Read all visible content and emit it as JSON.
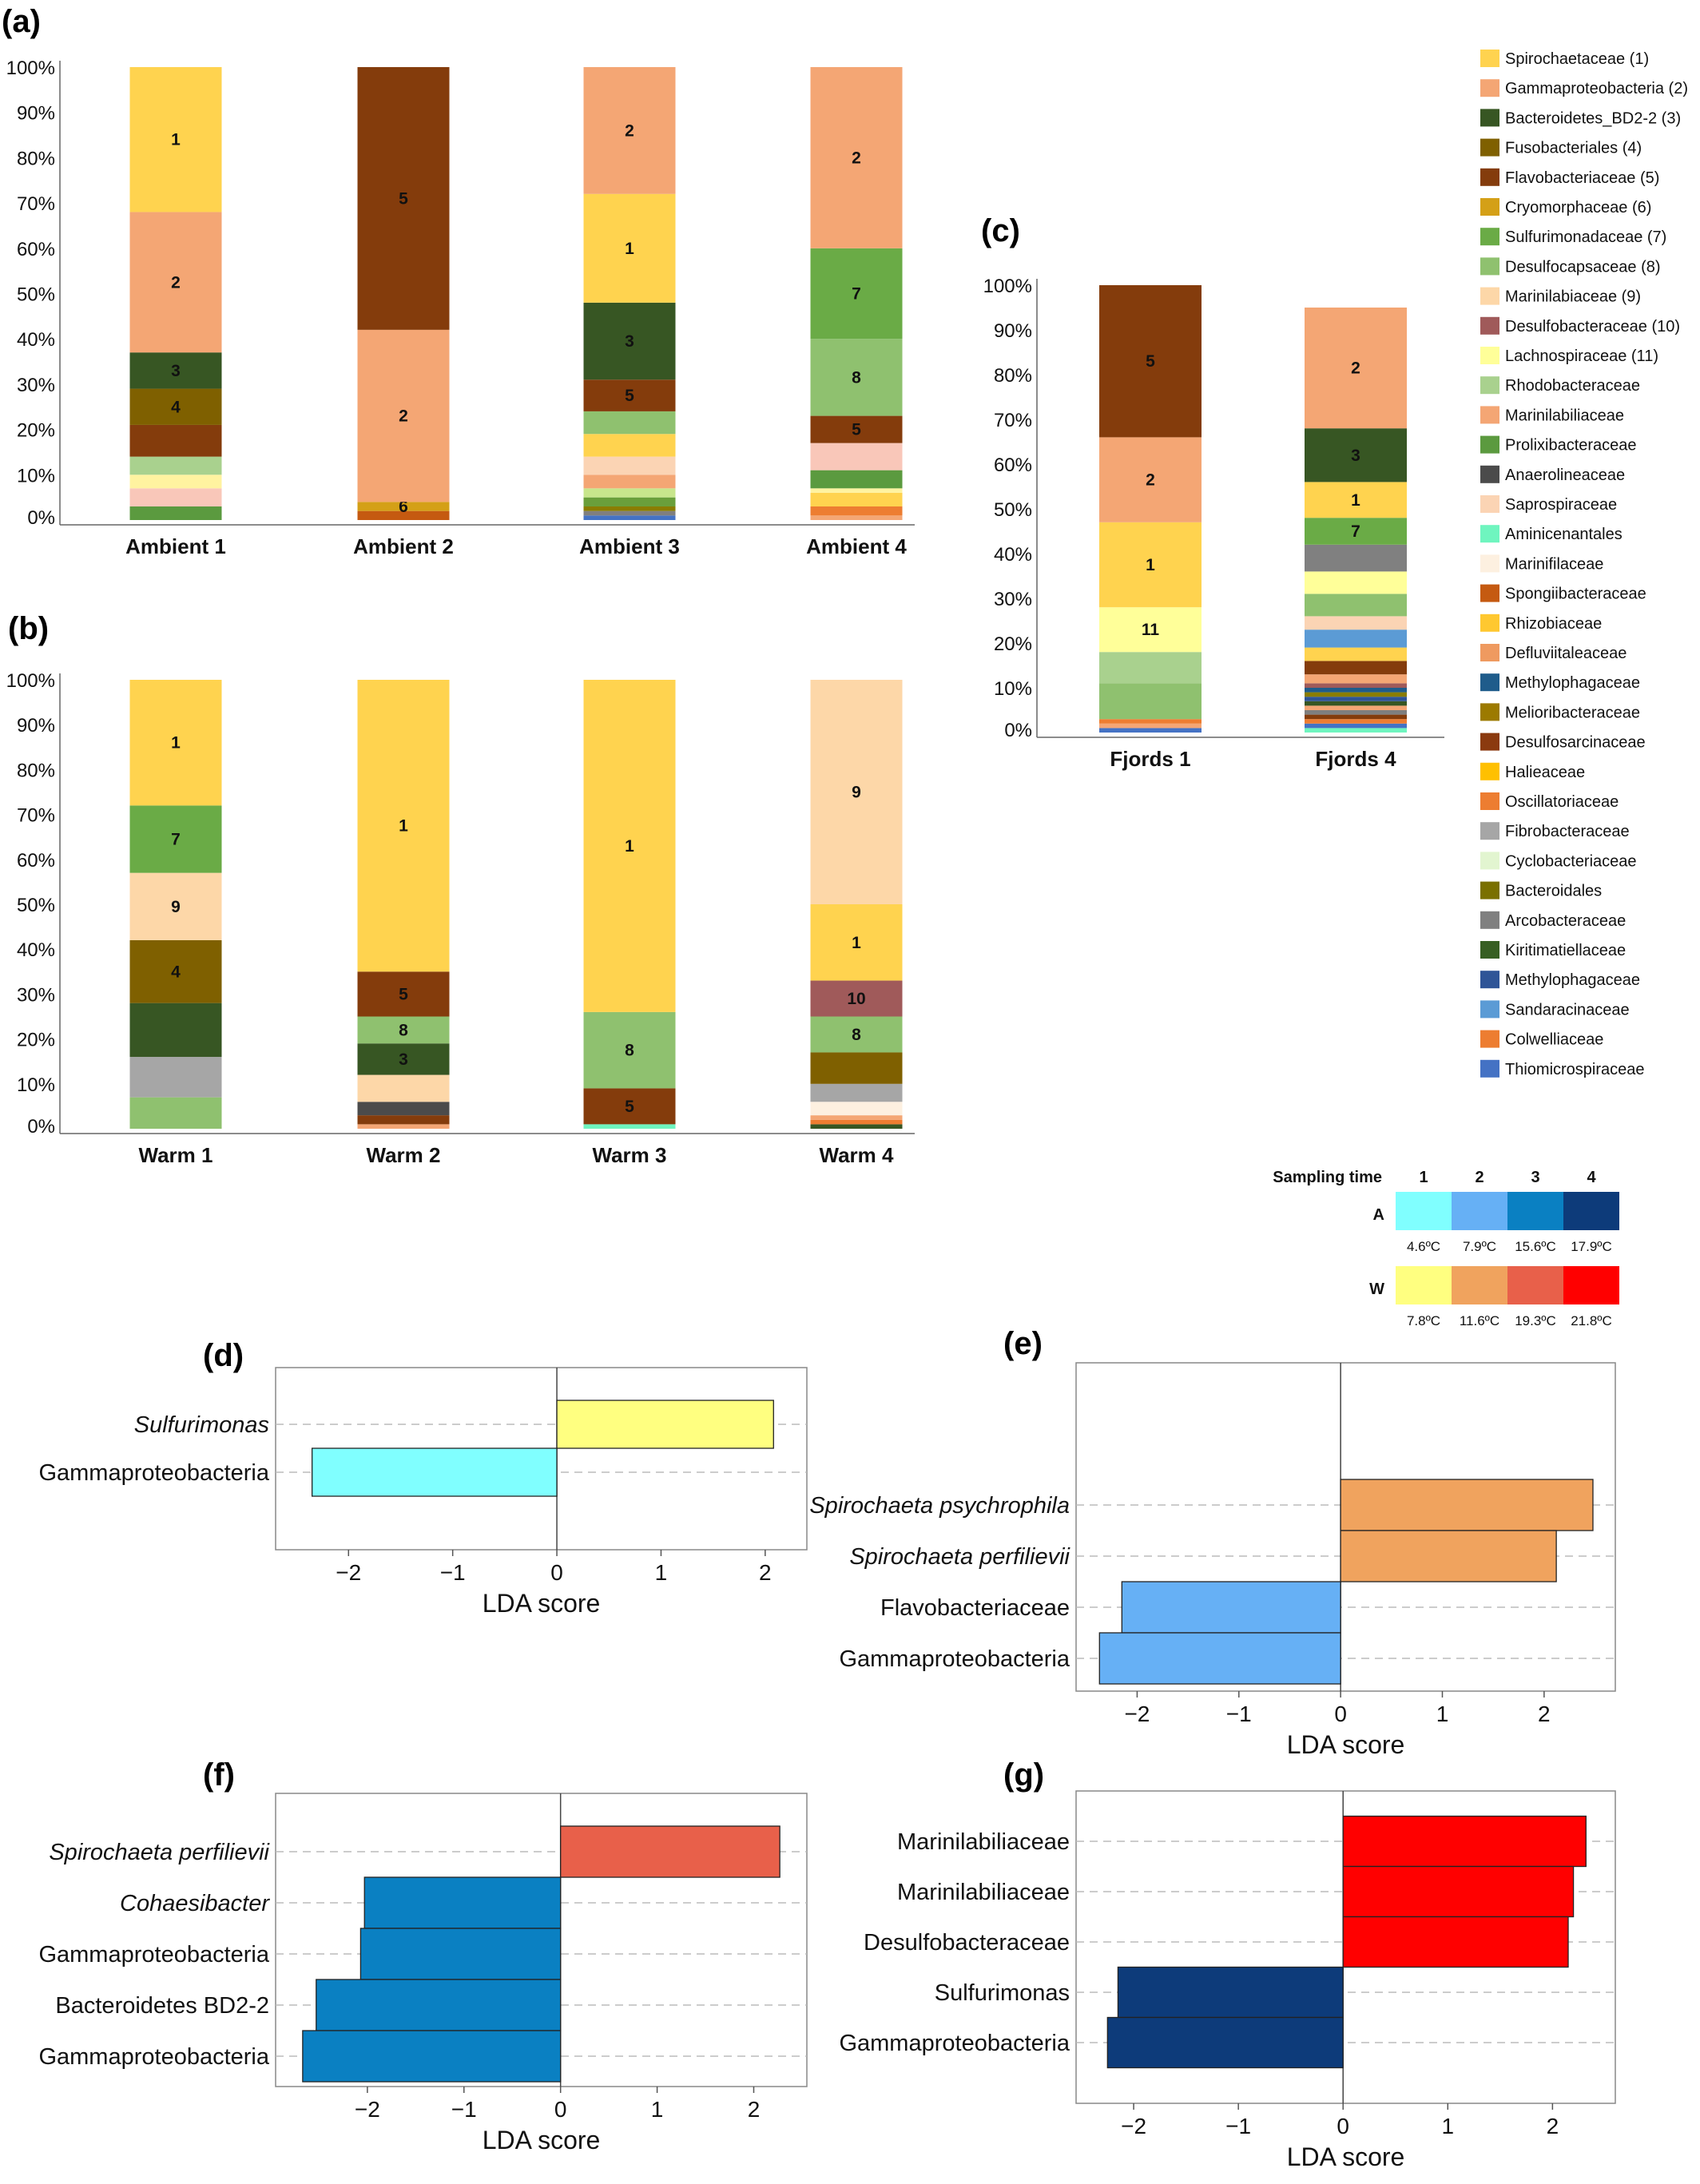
{
  "panel_labels": [
    "(a)",
    "(b)",
    "(c)",
    "(d)",
    "(e)",
    "(f)",
    "(g)"
  ],
  "y_ticks": [
    "0%",
    "10%",
    "20%",
    "30%",
    "40%",
    "50%",
    "60%",
    "70%",
    "80%",
    "90%",
    "100%"
  ],
  "chart_data": [
    {
      "panel": "(a)",
      "type": "bar",
      "stacked": true,
      "ylim": [
        0,
        100
      ],
      "categories": [
        "Ambient 1",
        "Ambient 2",
        "Ambient 3",
        "Ambient 4"
      ],
      "stacks": [
        [
          {
            "c": "#5b9a3f",
            "v": 3
          },
          {
            "c": "#f9c7b9",
            "v": 4
          },
          {
            "c": "#fff3a0",
            "v": 3
          },
          {
            "c": "#a9d18e",
            "v": 4
          },
          {
            "c": "#843c0c",
            "v": 7
          },
          {
            "c": "#7f6000",
            "v": 8,
            "label": "4"
          },
          {
            "c": "#375623",
            "v": 8,
            "label": "3"
          },
          {
            "c": "#f4a674",
            "v": 31,
            "label": "2"
          },
          {
            "c": "#ffd34f",
            "v": 32,
            "label": "1"
          }
        ],
        [
          {
            "c": "#c55a11",
            "v": 2
          },
          {
            "c": "#d4a017",
            "v": 2,
            "label": "6"
          },
          {
            "c": "#f4a674",
            "v": 38,
            "label": "2"
          },
          {
            "c": "#843c0c",
            "v": 58,
            "label": "5"
          }
        ],
        [
          {
            "c": "#4472c4",
            "v": 1
          },
          {
            "c": "#7f7f7f",
            "v": 1
          },
          {
            "c": "#8a7d00",
            "v": 1
          },
          {
            "c": "#6a9f3b",
            "v": 2
          },
          {
            "c": "#c8e68c",
            "v": 2
          },
          {
            "c": "#f4a674",
            "v": 3
          },
          {
            "c": "#fbd4b4",
            "v": 4
          },
          {
            "c": "#ffd34f",
            "v": 5
          },
          {
            "c": "#8fc16f",
            "v": 5
          },
          {
            "c": "#843c0c",
            "v": 7,
            "label": "5"
          },
          {
            "c": "#375623",
            "v": 17,
            "label": "3"
          },
          {
            "c": "#ffd34f",
            "v": 24,
            "label": "1"
          },
          {
            "c": "#f4a674",
            "v": 28,
            "label": "2"
          }
        ],
        [
          {
            "c": "#f4a674",
            "v": 1
          },
          {
            "c": "#ed7d31",
            "v": 2
          },
          {
            "c": "#ffd34f",
            "v": 3
          },
          {
            "c": "#fff3a0",
            "v": 1
          },
          {
            "c": "#5b9a3f",
            "v": 4
          },
          {
            "c": "#f9c7b9",
            "v": 6
          },
          {
            "c": "#843c0c",
            "v": 6,
            "label": "5"
          },
          {
            "c": "#8fc16f",
            "v": 17,
            "label": "8"
          },
          {
            "c": "#6aab46",
            "v": 20,
            "label": "7"
          },
          {
            "c": "#f4a674",
            "v": 40,
            "label": "2"
          }
        ]
      ]
    },
    {
      "panel": "(b)",
      "type": "bar",
      "stacked": true,
      "ylim": [
        0,
        100
      ],
      "categories": [
        "Warm 1",
        "Warm 2",
        "Warm 3",
        "Warm 4"
      ],
      "stacks": [
        [
          {
            "c": "#8fc16f",
            "v": 7
          },
          {
            "c": "#a6a6a6",
            "v": 9
          },
          {
            "c": "#375623",
            "v": 12
          },
          {
            "c": "#7f6000",
            "v": 14,
            "label": "4"
          },
          {
            "c": "#fdd7a8",
            "v": 15,
            "label": "9"
          },
          {
            "c": "#6aab46",
            "v": 15,
            "label": "7"
          },
          {
            "c": "#ffd34f",
            "v": 28,
            "label": "1"
          }
        ],
        [
          {
            "c": "#f4a674",
            "v": 1
          },
          {
            "c": "#843c0c",
            "v": 2
          },
          {
            "c": "#4b4b4b",
            "v": 3
          },
          {
            "c": "#fdd7a8",
            "v": 6
          },
          {
            "c": "#375623",
            "v": 7,
            "label": "3"
          },
          {
            "c": "#8fc16f",
            "v": 6,
            "label": "8"
          },
          {
            "c": "#843c0c",
            "v": 10,
            "label": "5"
          },
          {
            "c": "#ffd34f",
            "v": 65,
            "label": "1"
          }
        ],
        [
          {
            "c": "#6ff5bf",
            "v": 1
          },
          {
            "c": "#843c0c",
            "v": 8,
            "label": "5"
          },
          {
            "c": "#8fc16f",
            "v": 17,
            "label": "8"
          },
          {
            "c": "#ffd34f",
            "v": 74,
            "label": "1"
          }
        ],
        [
          {
            "c": "#375623",
            "v": 1
          },
          {
            "c": "#ed7d31",
            "v": 1
          },
          {
            "c": "#f4a674",
            "v": 1
          },
          {
            "c": "#fdf0e0",
            "v": 3
          },
          {
            "c": "#a6a6a6",
            "v": 4
          },
          {
            "c": "#7f6000",
            "v": 7
          },
          {
            "c": "#8fc16f",
            "v": 8,
            "label": "8"
          },
          {
            "c": "#a05a5a",
            "v": 8,
            "label": "10"
          },
          {
            "c": "#ffd34f",
            "v": 17,
            "label": "1"
          },
          {
            "c": "#fdd7a8",
            "v": 50,
            "label": "9"
          }
        ]
      ]
    },
    {
      "panel": "(c)",
      "type": "bar",
      "stacked": true,
      "ylim": [
        0,
        100
      ],
      "categories": [
        "Fjords 1",
        "Fjords 4"
      ],
      "stacks": [
        [
          {
            "c": "#4472c4",
            "v": 1
          },
          {
            "c": "#f4a674",
            "v": 1
          },
          {
            "c": "#ed7d31",
            "v": 1
          },
          {
            "c": "#8fc16f",
            "v": 8
          },
          {
            "c": "#a9d18e",
            "v": 7
          },
          {
            "c": "#ffff99",
            "v": 10,
            "label": "11"
          },
          {
            "c": "#ffd34f",
            "v": 19,
            "label": "1"
          },
          {
            "c": "#f4a674",
            "v": 19,
            "label": "2"
          },
          {
            "c": "#843c0c",
            "v": 34,
            "label": "5"
          }
        ],
        [
          {
            "c": "#6ff5bf",
            "v": 1
          },
          {
            "c": "#4472c4",
            "v": 1
          },
          {
            "c": "#ed7d31",
            "v": 1
          },
          {
            "c": "#843c0c",
            "v": 1
          },
          {
            "c": "#7f7f7f",
            "v": 1
          },
          {
            "c": "#f4a674",
            "v": 1
          },
          {
            "c": "#375623",
            "v": 1
          },
          {
            "c": "#2f5597",
            "v": 1
          },
          {
            "c": "#8a7d00",
            "v": 1
          },
          {
            "c": "#1f5c8b",
            "v": 1
          },
          {
            "c": "#a05a5a",
            "v": 1
          },
          {
            "c": "#f4a674",
            "v": 2
          },
          {
            "c": "#843c0c",
            "v": 3
          },
          {
            "c": "#ffd34f",
            "v": 3
          },
          {
            "c": "#5b9bd5",
            "v": 4
          },
          {
            "c": "#fbd4b4",
            "v": 3
          },
          {
            "c": "#8fc16f",
            "v": 5
          },
          {
            "c": "#ffff99",
            "v": 5
          },
          {
            "c": "#808080",
            "v": 6
          },
          {
            "c": "#6aab46",
            "v": 6,
            "label": "7"
          },
          {
            "c": "#ffd34f",
            "v": 8,
            "label": "1"
          },
          {
            "c": "#375623",
            "v": 12,
            "label": "3"
          },
          {
            "c": "#f4a674",
            "v": 27,
            "label": "2"
          }
        ]
      ]
    },
    {
      "panel": "(d)",
      "type": "bar",
      "orientation": "horizontal",
      "xlabel": "LDA score",
      "xticks": [
        -2,
        -1,
        0,
        1,
        2
      ],
      "xlim": [
        -2.7,
        2.4
      ],
      "bars": [
        {
          "name": "Sulfurimonas",
          "value": 2.08,
          "color": "#ffff80",
          "italic": true
        },
        {
          "name": "Gammaproteobacteria",
          "value": -2.35,
          "color": "#80ffff",
          "italic": false
        }
      ]
    },
    {
      "panel": "(e)",
      "type": "bar",
      "orientation": "horizontal",
      "xlabel": "LDA score",
      "xticks": [
        -2,
        -1,
        0,
        1,
        2
      ],
      "xlim": [
        -2.6,
        2.7
      ],
      "bars": [
        {
          "name": "Spirochaeta psychrophila",
          "value": 2.48,
          "color": "#f0a35e",
          "italic": true
        },
        {
          "name": "Spirochaeta perfilievii",
          "value": 2.12,
          "color": "#f0a35e",
          "italic": true
        },
        {
          "name": "Flavobacteriaceae",
          "value": -2.15,
          "color": "#66b0f5",
          "italic": false
        },
        {
          "name": "Gammaproteobacteria",
          "value": -2.37,
          "color": "#66b0f5",
          "italic": false
        }
      ]
    },
    {
      "panel": "(f)",
      "type": "bar",
      "orientation": "horizontal",
      "xlabel": "LDA score",
      "xticks": [
        -2,
        -1,
        0,
        1,
        2
      ],
      "xlim": [
        -2.95,
        2.55
      ],
      "bars": [
        {
          "name": "Spirochaeta perfilievii",
          "value": 2.27,
          "color": "#e8604a",
          "italic": true
        },
        {
          "name": "Cohaesibacter",
          "value": -2.03,
          "color": "#0a80c2",
          "italic": true
        },
        {
          "name": "Gammaproteobacteria",
          "value": -2.07,
          "color": "#0a80c2",
          "italic": false
        },
        {
          "name": "Bacteroidetes BD2-2",
          "value": -2.53,
          "color": "#0a80c2",
          "italic": false
        },
        {
          "name": "Gammaproteobacteria",
          "value": -2.67,
          "color": "#0a80c2",
          "italic": false
        }
      ]
    },
    {
      "panel": "(g)",
      "type": "bar",
      "orientation": "horizontal",
      "xlabel": "LDA score",
      "xticks": [
        -2,
        -1,
        0,
        1,
        2
      ],
      "xlim": [
        -2.55,
        2.6
      ],
      "bars": [
        {
          "name": "Marinilabiliaceae",
          "value": 2.32,
          "color": "#ff0000",
          "italic": false
        },
        {
          "name": "Marinilabiliaceae",
          "value": 2.2,
          "color": "#ff0000",
          "italic": false
        },
        {
          "name": "Desulfobacteraceae",
          "value": 2.15,
          "color": "#ff0000",
          "italic": false
        },
        {
          "name": "Sulfurimonas",
          "value": -2.15,
          "color": "#0d3b7a",
          "italic": false
        },
        {
          "name": "Gammaproteobacteria",
          "value": -2.25,
          "color": "#0d3b7a",
          "italic": false
        }
      ]
    }
  ],
  "legend": [
    {
      "label": "Spirochaetaceae (1)",
      "color": "#ffd34f"
    },
    {
      "label": "Gammaproteobacteria (2)",
      "color": "#f4a674"
    },
    {
      "label": "Bacteroidetes_BD2-2 (3)",
      "color": "#375623"
    },
    {
      "label": "Fusobacteriales (4)",
      "color": "#7f6000"
    },
    {
      "label": "Flavobacteriaceae (5)",
      "color": "#843c0c"
    },
    {
      "label": "Cryomorphaceae (6)",
      "color": "#d4a017"
    },
    {
      "label": "Sulfurimonadaceae (7)",
      "color": "#6aab46"
    },
    {
      "label": "Desulfocapsaceae (8)",
      "color": "#8fc16f"
    },
    {
      "label": "Marinilabiaceae (9)",
      "color": "#fdd7a8"
    },
    {
      "label": "Desulfobacteraceae (10)",
      "color": "#a05a5a"
    },
    {
      "label": "Lachnospiraceae (11)",
      "color": "#ffff99"
    },
    {
      "label": "Rhodobacteraceae",
      "color": "#a9d18e"
    },
    {
      "label": "Marinilabiliaceae",
      "color": "#f4a674"
    },
    {
      "label": "Prolixibacteraceae",
      "color": "#5b9a3f"
    },
    {
      "label": "Anaerolineaceae",
      "color": "#4b4b4b"
    },
    {
      "label": "Saprospiraceae",
      "color": "#fbd4b4"
    },
    {
      "label": "Aminicenantales",
      "color": "#6ff5bf"
    },
    {
      "label": "Marinifilaceae",
      "color": "#fdf0e0"
    },
    {
      "label": "Spongiibacteraceae",
      "color": "#c55a11"
    },
    {
      "label": "Rhizobiaceae",
      "color": "#ffc830"
    },
    {
      "label": "Defluviitaleaceae",
      "color": "#ef9a60"
    },
    {
      "label": "Methylophagaceae",
      "color": "#1f5c8b"
    },
    {
      "label": "Melioribacteraceae",
      "color": "#9c7a00"
    },
    {
      "label": "Desulfosarcinaceae",
      "color": "#8b3a0f"
    },
    {
      "label": "Halieaceae",
      "color": "#ffc000"
    },
    {
      "label": "Oscillatoriaceae",
      "color": "#ed7d31"
    },
    {
      "label": "Fibrobacteraceae",
      "color": "#a6a6a6"
    },
    {
      "label": "Cyclobacteriaceae",
      "color": "#e2f5d0"
    },
    {
      "label": "Bacteroidales",
      "color": "#7a7000"
    },
    {
      "label": "Arcobacteraceae",
      "color": "#808080"
    },
    {
      "label": "Kiritimatiellaceae",
      "color": "#375f23"
    },
    {
      "label": "Methylophagaceae",
      "color": "#2f5597"
    },
    {
      "label": "Sandaracinaceae",
      "color": "#5b9bd5"
    },
    {
      "label": "Colwelliaceae",
      "color": "#ed7d31"
    },
    {
      "label": "Thiomicrospiraceae",
      "color": "#4472c4"
    }
  ],
  "sampling_time": {
    "title": "Sampling time",
    "times": [
      "1",
      "2",
      "3",
      "4"
    ],
    "rows": [
      {
        "label": "A",
        "colors": [
          "#80ffff",
          "#66b0f5",
          "#0a80c2",
          "#0d3b7a"
        ],
        "temps": [
          "4.6ºC",
          "7.9ºC",
          "15.6ºC",
          "17.9ºC"
        ]
      },
      {
        "label": "W",
        "colors": [
          "#ffff80",
          "#f0a35e",
          "#e8604a",
          "#ff0000"
        ],
        "temps": [
          "7.8ºC",
          "11.6ºC",
          "19.3ºC",
          "21.8ºC"
        ]
      }
    ]
  }
}
